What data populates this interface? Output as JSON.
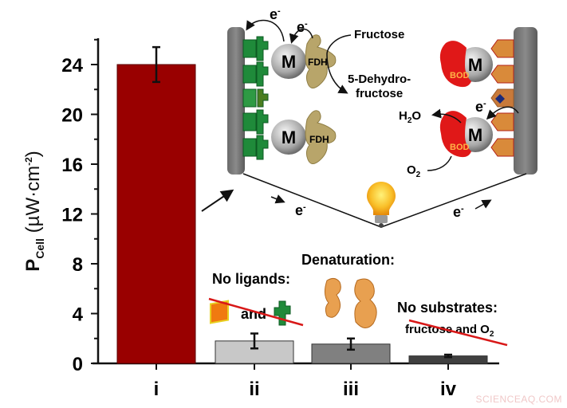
{
  "chart_data": {
    "type": "bar",
    "title": "",
    "xlabel": "",
    "ylabel": "P_Cell (µW·cm^-2)",
    "ylabel_parts": {
      "main": "P",
      "sub": "Cell",
      "unit_open": " (µW·cm",
      "sup": "-2",
      "unit_close": ")"
    },
    "ylim": [
      0,
      26
    ],
    "yticks": [
      0,
      4,
      8,
      12,
      16,
      20,
      24
    ],
    "grid": false,
    "categories": [
      "i",
      "ii",
      "iii",
      "iv"
    ],
    "values": [
      24.0,
      1.8,
      1.55,
      0.6
    ],
    "errors": [
      1.4,
      0.6,
      0.45,
      0.1
    ],
    "bar_colors": [
      "#990000",
      "#c8c8c8",
      "#808080",
      "#404040"
    ]
  },
  "annotations": {
    "no_ligands": "No ligands:",
    "and": "and",
    "denaturation": "Denaturation:",
    "no_substrates": "No substrates:",
    "fructose_and_o2": "fructose and O",
    "o2_sub": "2"
  },
  "diagram": {
    "electron": "e",
    "electron_sup": "-",
    "mediator": "M",
    "anode_enzyme": "FDH",
    "cathode_enzyme": "BOD",
    "fructose": "Fructose",
    "product_line1": "5-Dehydro-",
    "product_line2": "fructose",
    "water": "H",
    "water_sub": "2",
    "water_end": "O",
    "oxygen": "O",
    "oxygen_sub": "2"
  },
  "watermark": "SCIENCEAQ.COM"
}
